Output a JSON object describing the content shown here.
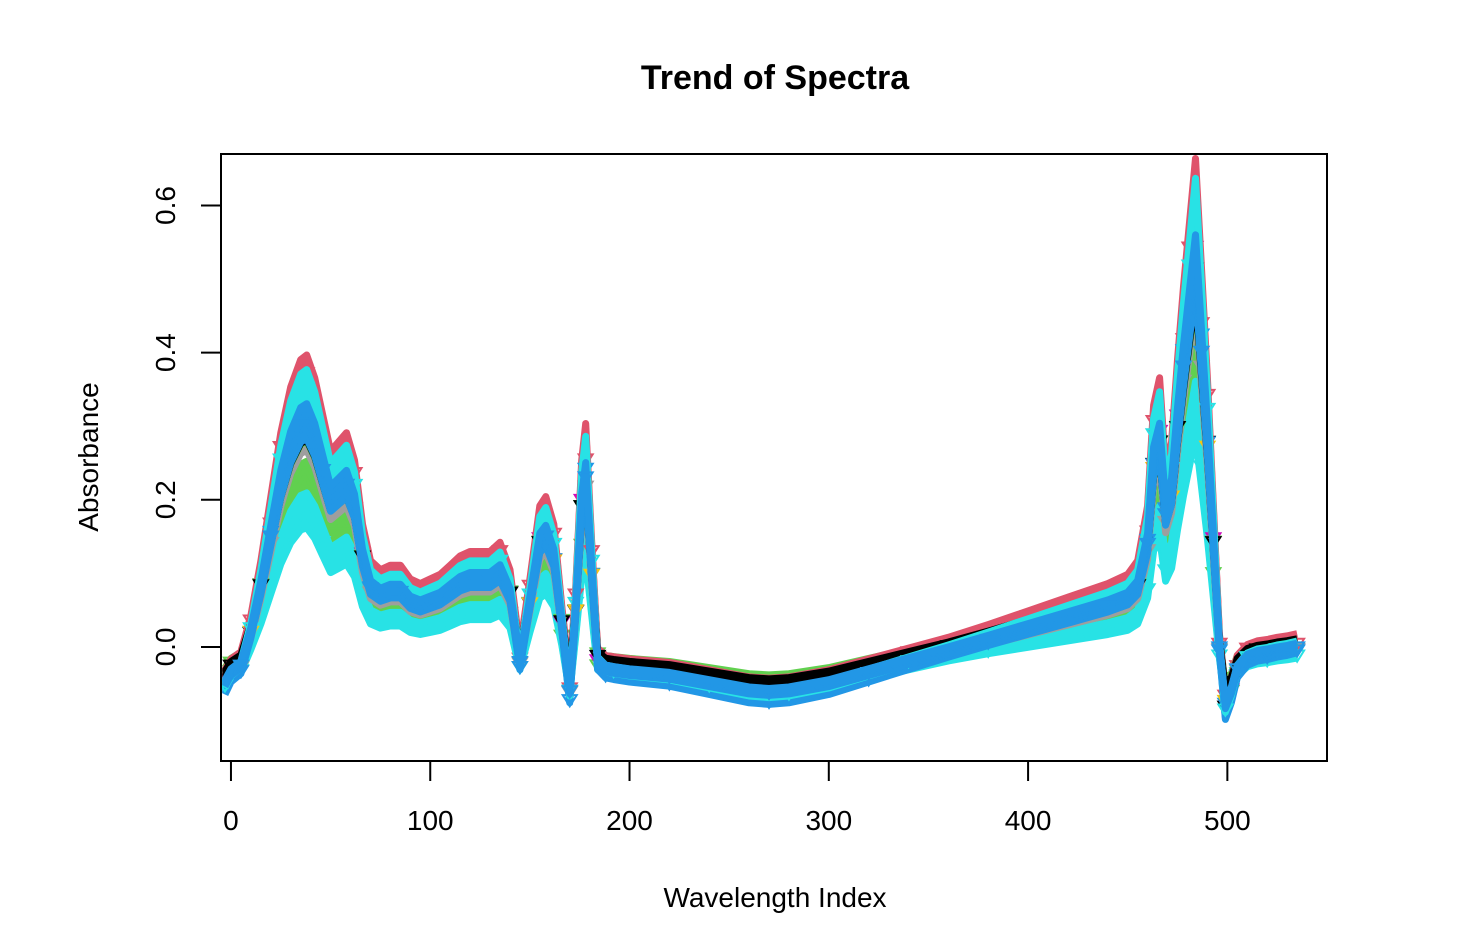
{
  "chart_data": {
    "type": "line",
    "title": "Trend of Spectra",
    "xlabel": "Wavelength Index",
    "ylabel": "Absorbance",
    "xlim": [
      -5,
      550
    ],
    "ylim": [
      -0.155,
      0.67
    ],
    "x_ticks": [
      0,
      100,
      200,
      300,
      400,
      500
    ],
    "x_tick_labels": [
      "0",
      "100",
      "200",
      "300",
      "400",
      "500"
    ],
    "y_ticks": [
      0.0,
      0.2,
      0.4,
      0.6
    ],
    "y_tick_labels": [
      "0.0",
      "0.2",
      "0.4",
      "0.6"
    ],
    "grid": false,
    "legend": "none",
    "profile_x": [
      -3,
      0,
      5,
      10,
      15,
      20,
      25,
      30,
      35,
      38,
      42,
      46,
      50,
      54,
      58,
      62,
      66,
      70,
      75,
      80,
      85,
      90,
      95,
      100,
      105,
      110,
      115,
      120,
      125,
      130,
      135,
      140,
      145,
      150,
      155,
      158,
      162,
      166,
      170,
      173,
      176,
      178,
      181,
      184,
      188,
      192,
      200,
      220,
      240,
      260,
      270,
      280,
      300,
      320,
      340,
      360,
      380,
      400,
      420,
      440,
      450,
      455,
      460,
      463,
      466,
      469,
      472,
      475,
      478,
      481,
      484,
      487,
      490,
      493,
      496,
      499,
      502,
      505,
      510,
      515,
      520,
      525,
      530,
      535
    ],
    "profile_y": [
      -0.05,
      -0.035,
      -0.025,
      0.02,
      0.08,
      0.15,
      0.22,
      0.27,
      0.3,
      0.305,
      0.28,
      0.24,
      0.2,
      0.21,
      0.22,
      0.19,
      0.12,
      0.08,
      0.07,
      0.075,
      0.075,
      0.06,
      0.055,
      0.06,
      0.065,
      0.075,
      0.085,
      0.09,
      0.09,
      0.09,
      0.1,
      0.07,
      -0.02,
      0.06,
      0.14,
      0.15,
      0.12,
      0.03,
      -0.06,
      0.05,
      0.19,
      0.23,
      0.1,
      -0.02,
      -0.03,
      -0.032,
      -0.035,
      -0.04,
      -0.05,
      -0.06,
      -0.062,
      -0.06,
      -0.05,
      -0.035,
      -0.02,
      -0.005,
      0.01,
      0.025,
      0.04,
      0.055,
      0.065,
      0.08,
      0.14,
      0.25,
      0.28,
      0.18,
      0.21,
      0.3,
      0.38,
      0.45,
      0.52,
      0.4,
      0.28,
      0.14,
      0.0,
      -0.08,
      -0.06,
      -0.03,
      -0.015,
      -0.01,
      -0.008,
      -0.005,
      -0.003,
      0.0
    ],
    "series": [
      {
        "color": "#000000",
        "offset": 0.0,
        "scale": 1.0
      },
      {
        "color": "#DF536B",
        "offset": 0.018,
        "scale": 1.05
      },
      {
        "color": "#61D04F",
        "offset": -0.022,
        "scale": 0.82
      },
      {
        "color": "#2297E6",
        "offset": 0.005,
        "scale": 0.98
      },
      {
        "color": "#28E2E5",
        "offset": -0.035,
        "scale": 0.72
      },
      {
        "color": "#CD0BBC",
        "offset": 0.01,
        "scale": 1.02
      },
      {
        "color": "#F5C710",
        "offset": 0.008,
        "scale": 0.95
      },
      {
        "color": "#9E9E9E",
        "offset": -0.005,
        "scale": 0.97
      },
      {
        "color": "#61D04F",
        "offset": 0.03,
        "scale": 0.9
      },
      {
        "color": "#DF536B",
        "offset": 0.045,
        "scale": 1.08
      },
      {
        "color": "#2297E6",
        "offset": -0.012,
        "scale": 1.1
      },
      {
        "color": "#000000",
        "offset": 0.022,
        "scale": 0.93
      },
      {
        "color": "#28E2E5",
        "offset": 0.012,
        "scale": 1.12
      },
      {
        "color": "#2297E6",
        "offset": 0.002,
        "scale": 1.0
      }
    ]
  }
}
